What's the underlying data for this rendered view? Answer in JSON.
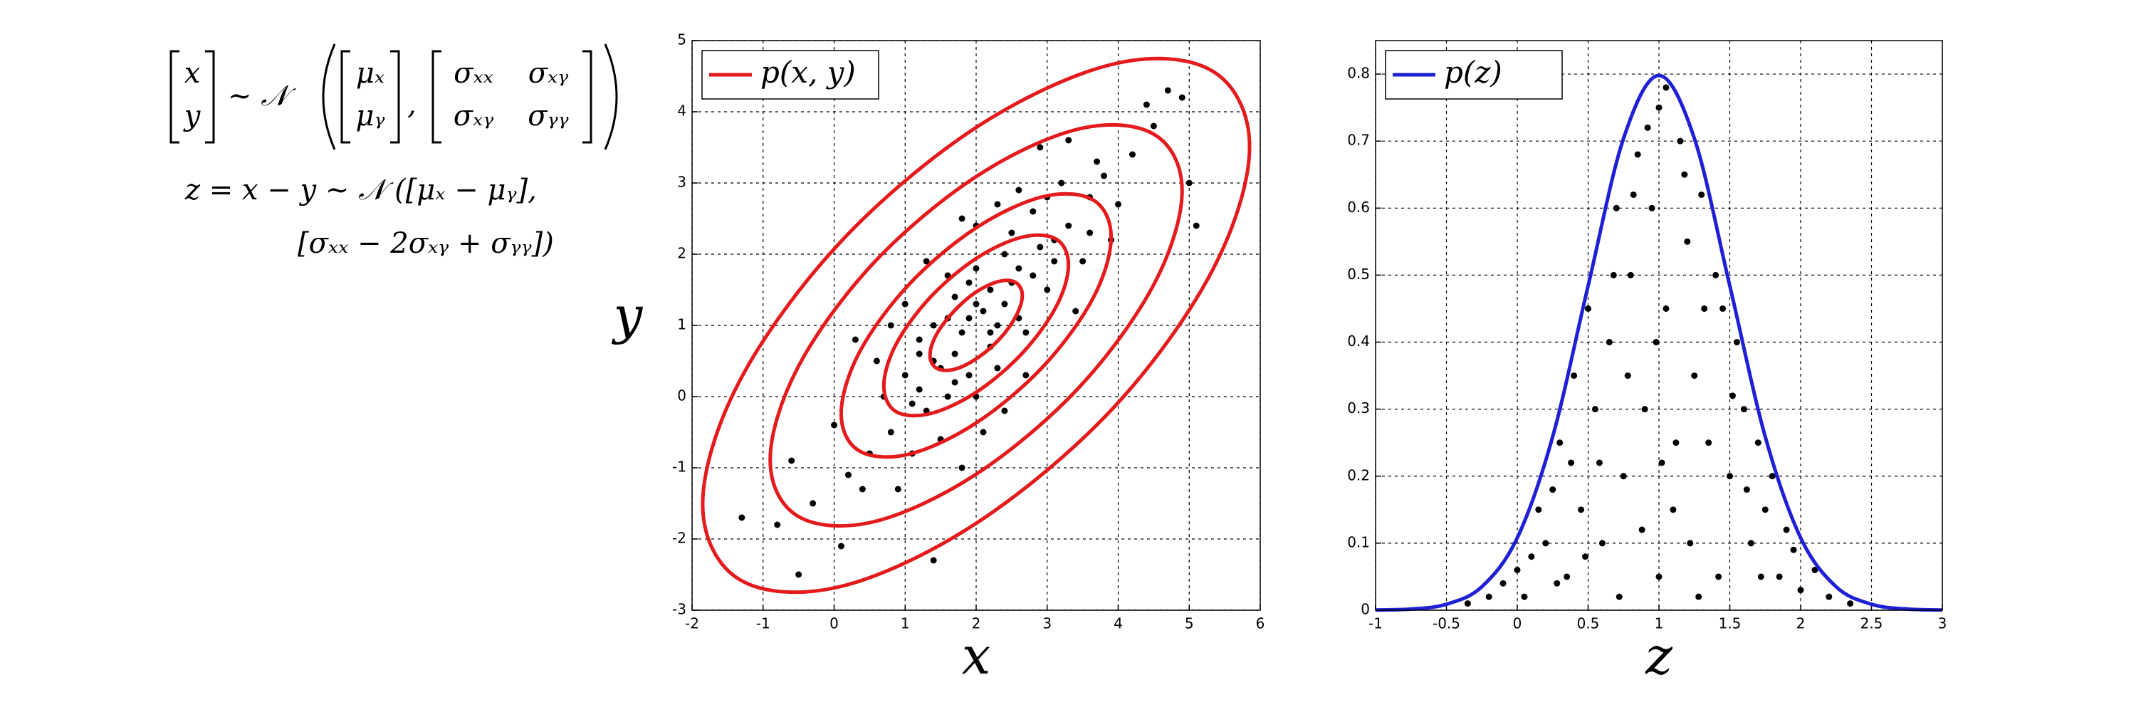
{
  "equations": {
    "vector": [
      "x",
      "y"
    ],
    "dist": "∼ 𝒩",
    "mean": [
      "μₓ",
      "μᵧ"
    ],
    "sep": ",",
    "cov": [
      [
        "σₓₓ",
        "σₓᵧ"
      ],
      [
        "σₓᵧ",
        "σᵧᵧ"
      ]
    ],
    "line2": "z = x − y ∼ 𝒩 ([μₓ − μᵧ],",
    "line3": "[σₓₓ − 2σₓᵧ + σᵧᵧ])"
  },
  "chart_data": [
    {
      "type": "scatter",
      "xlabel": "x",
      "ylabel": "y",
      "xlim": [
        -2,
        6
      ],
      "ylim": [
        -3,
        5
      ],
      "xticks": [
        -2,
        -1,
        0,
        1,
        2,
        3,
        4,
        5,
        6
      ],
      "yticks": [
        -3,
        -2,
        -1,
        0,
        1,
        2,
        3,
        4,
        5
      ],
      "grid": true,
      "legend": "upper left",
      "points": {
        "color": "#000000",
        "x": [
          2.1,
          1.8,
          2.5,
          1.5,
          2.9,
          1.2,
          3.3,
          0.8,
          2.2,
          1.7,
          2.6,
          1.4,
          3.0,
          1.0,
          2.4,
          1.9,
          3.6,
          0.5,
          2.8,
          1.3,
          2.0,
          2.3,
          3.8,
          0.2,
          1.6,
          2.7,
          1.1,
          3.2,
          4.2,
          -0.3,
          2.0,
          1.5,
          3.5,
          0.6,
          4.5,
          -0.8,
          2.4,
          1.0,
          3.9,
          0.0,
          4.9,
          -1.3,
          1.4,
          5.0,
          2.9,
          0.3,
          3.4,
          1.8,
          2.6,
          0.9,
          4.0,
          1.2,
          2.2,
          1.7,
          2.5,
          1.9,
          3.1,
          1.6,
          2.8,
          0.7,
          3.7,
          1.3,
          2.1,
          4.4,
          0.4,
          3.3,
          -0.6,
          2.3,
          1.1,
          3.6,
          0.1,
          4.7,
          2.7,
          1.8,
          3.0,
          0.8,
          5.1,
          -0.5,
          2.0,
          2.4,
          1.6,
          2.2,
          1.9,
          2.6,
          1.4,
          2.0,
          2.3,
          1.7,
          3.1,
          1.2
        ],
        "y": [
          1.2,
          0.9,
          1.6,
          0.4,
          2.1,
          0.1,
          2.4,
          -0.5,
          0.7,
          1.4,
          1.1,
          1.0,
          1.5,
          0.3,
          2.0,
          0.3,
          2.8,
          -0.8,
          2.6,
          -0.2,
          1.8,
          0.4,
          3.1,
          -1.1,
          1.7,
          0.9,
          -0.8,
          3.0,
          3.4,
          -1.5,
          2.4,
          -0.6,
          1.9,
          0.5,
          3.8,
          -1.8,
          -0.2,
          1.3,
          2.2,
          -0.4,
          4.2,
          -1.7,
          -2.3,
          3.0,
          3.5,
          0.8,
          1.2,
          2.5,
          2.9,
          -1.3,
          2.7,
          0.8,
          1.5,
          0.6,
          2.3,
          1.1,
          1.9,
          0.0,
          1.7,
          0.0,
          3.3,
          1.9,
          -0.5,
          4.1,
          -1.3,
          3.6,
          -0.9,
          2.7,
          -0.1,
          2.3,
          -2.1,
          4.3,
          0.3,
          -1.0,
          2.8,
          1.0,
          2.4,
          -2.5,
          0.0,
          1.3,
          1.1,
          0.9,
          1.6,
          1.8,
          0.5,
          1.3,
          1.0,
          0.2,
          2.2,
          0.6
        ]
      },
      "series": [
        {
          "name": "p(x, y)",
          "color": "#e41a1c",
          "contours": [
            {
              "x": [
                5.85,
                5.33,
                3.93,
                2,
                0.08,
                -1.33,
                -1.85,
                -1.33,
                0.08,
                2,
                3.93,
                5.33
              ],
              "y": [
                3.51,
                4.57,
                4.67,
                3.78,
                2.16,
                0.22,
                -1.51,
                -2.57,
                -2.67,
                -1.78,
                -0.16,
                1.78
              ]
            },
            {
              "x": [
                4.9,
                4.51,
                3.45,
                2,
                0.55,
                -0.51,
                -0.9,
                -0.51,
                0.55,
                2,
                3.45,
                4.51
              ],
              "y": [
                2.89,
                3.68,
                3.76,
                3.09,
                1.87,
                0.41,
                -0.89,
                -1.68,
                -1.76,
                -1.09,
                0.13,
                1.59
              ]
            },
            {
              "x": [
                3.9,
                3.65,
                2.95,
                2,
                1.05,
                0.35,
                0.1,
                0.35,
                1.05,
                2,
                2.95,
                3.65
              ],
              "y": [
                2.24,
                2.76,
                2.81,
                2.37,
                1.57,
                0.61,
                -0.24,
                -0.76,
                -0.81,
                -0.37,
                0.43,
                1.39
              ]
            },
            {
              "x": [
                3.3,
                3.13,
                2.65,
                2,
                1.35,
                0.87,
                0.7,
                0.87,
                1.35,
                2,
                2.65,
                3.13
              ],
              "y": [
                1.85,
                2.21,
                2.24,
                1.94,
                1.39,
                0.73,
                0.15,
                -0.21,
                -0.24,
                0.06,
                0.61,
                1.27
              ]
            },
            {
              "x": [
                2.65,
                2.56,
                2.33,
                2,
                1.68,
                1.44,
                1.35,
                1.44,
                1.68,
                2,
                2.33,
                2.56
              ],
              "y": [
                1.42,
                1.6,
                1.62,
                1.47,
                1.19,
                0.87,
                0.58,
                0.4,
                0.38,
                0.53,
                0.81,
                1.13
              ]
            }
          ]
        }
      ]
    },
    {
      "type": "scatter",
      "xlabel": "z",
      "xlim": [
        -1,
        3
      ],
      "ylim": [
        0,
        0.85
      ],
      "xticks": [
        -1,
        -0.5,
        0,
        0.5,
        1,
        1.5,
        2,
        2.5,
        3
      ],
      "yticks": [
        0,
        0.1,
        0.2,
        0.3,
        0.4,
        0.5,
        0.6,
        0.7,
        0.8
      ],
      "grid": true,
      "legend": "upper left",
      "points": {
        "color": "#000000",
        "x": [
          1.0,
          0.95,
          1.05,
          0.9,
          1.1,
          1.0,
          0.85,
          1.15,
          0.8,
          1.2,
          0.75,
          1.25,
          0.7,
          1.3,
          0.65,
          1.35,
          0.6,
          1.4,
          0.55,
          1.45,
          0.5,
          1.5,
          0.45,
          1.55,
          0.4,
          1.6,
          0.35,
          1.65,
          0.3,
          1.7,
          0.25,
          1.75,
          0.2,
          1.8,
          0.15,
          1.85,
          0.1,
          1.9,
          0.05,
          1.95,
          0.0,
          2.0,
          -0.1,
          2.1,
          -0.2,
          2.2,
          -0.35,
          2.35,
          1.05,
          0.92,
          1.12,
          0.88,
          0.98,
          1.02,
          0.78,
          1.22,
          0.68,
          1.32,
          0.58,
          1.42,
          0.48,
          1.52,
          0.38,
          1.62,
          0.28,
          1.72,
          0.72,
          1.28,
          0.82,
          1.18
        ],
        "y": [
          0.75,
          0.6,
          0.45,
          0.3,
          0.15,
          0.05,
          0.68,
          0.7,
          0.5,
          0.55,
          0.2,
          0.35,
          0.6,
          0.62,
          0.4,
          0.25,
          0.1,
          0.5,
          0.3,
          0.45,
          0.45,
          0.2,
          0.15,
          0.4,
          0.35,
          0.3,
          0.05,
          0.1,
          0.25,
          0.25,
          0.18,
          0.15,
          0.1,
          0.2,
          0.15,
          0.05,
          0.08,
          0.12,
          0.02,
          0.09,
          0.06,
          0.03,
          0.04,
          0.06,
          0.02,
          0.02,
          0.01,
          0.01,
          0.78,
          0.72,
          0.25,
          0.12,
          0.4,
          0.22,
          0.35,
          0.1,
          0.5,
          0.45,
          0.22,
          0.05,
          0.08,
          0.32,
          0.22,
          0.18,
          0.04,
          0.05,
          0.02,
          0.02,
          0.62,
          0.65
        ]
      },
      "series": [
        {
          "name": "p(z)",
          "color": "#1f1fd6",
          "x": [
            -1,
            -0.75,
            -0.5,
            -0.25,
            0,
            0.25,
            0.5,
            0.75,
            1,
            1.25,
            1.5,
            1.75,
            2,
            2.25,
            2.5,
            2.75,
            3
          ],
          "y": [
            0.0003,
            0.0017,
            0.0089,
            0.035,
            0.108,
            0.259,
            0.484,
            0.704,
            0.798,
            0.704,
            0.484,
            0.259,
            0.108,
            0.035,
            0.0089,
            0.0017,
            0.0003
          ]
        }
      ]
    }
  ]
}
